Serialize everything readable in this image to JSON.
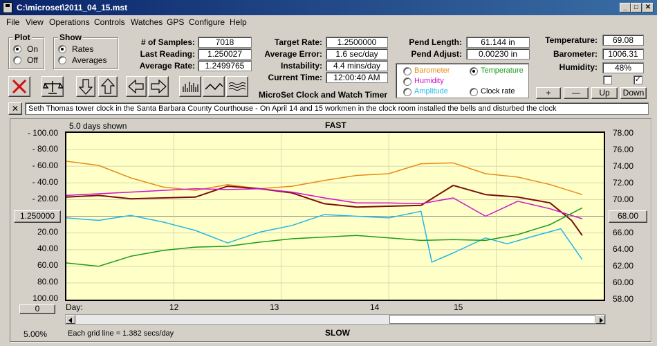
{
  "window": {
    "title": "C:\\microset\\2011_04_15.mst"
  },
  "menu": [
    "File",
    "View",
    "Operations",
    "Controls",
    "Watches",
    "GPS",
    "Configure",
    "Help"
  ],
  "plot_group": {
    "title": "Plot",
    "on": "On",
    "off": "Off",
    "selected": "On"
  },
  "show_group": {
    "title": "Show",
    "rates": "Rates",
    "averages": "Averages",
    "selected": "Rates"
  },
  "stats": {
    "samples_label": "# of Samples:",
    "samples": "7018",
    "last_reading_label": "Last Reading:",
    "last_reading": "1.250027",
    "average_rate_label": "Average Rate:",
    "average_rate": "1.2499765"
  },
  "rates": {
    "target_rate_label": "Target Rate:",
    "target_rate": "1.2500000",
    "average_error_label": "Average Error:",
    "average_error": "1.6 sec/day",
    "instability_label": "Instability:",
    "instability": "4.4 mins/day",
    "current_time_label": "Current Time:",
    "current_time": "12:00:40 AM",
    "program_name": "MicroSet Clock and Watch Timer"
  },
  "pendulum": {
    "length_label": "Pend Length:",
    "length": "61.144 in",
    "adjust_label": "Pend Adjust:",
    "adjust": "0.00230 in"
  },
  "sensor_options": {
    "barometer": "Barometer",
    "temperature": "Temperature",
    "humidity": "Humidity",
    "amplitude": "Amplitude",
    "clock_rate": "Clock rate",
    "selected": "Temperature",
    "colors": {
      "barometer": "#e88a14",
      "temperature": "#1a9a1a",
      "humidity": "#d010d0",
      "amplitude": "#20b8e8"
    }
  },
  "environment": {
    "temperature_label": "Temperature:",
    "temperature": "69.08",
    "barometer_label": "Barometer:",
    "barometer": "1006.31",
    "humidity_label": "Humidity:",
    "humidity": "48%"
  },
  "scale_buttons": {
    "plus": "+",
    "minus": "—",
    "up": "Up",
    "down": "Down"
  },
  "note": "Seth Thomas tower clock in the Santa Barbara County Courthouse - On  April 14 and 15 workmen in the clock room installed the bells and disturbed the clock",
  "chart_labels": {
    "days_shown": "5.0 days shown",
    "fast": "FAST",
    "slow": "SLOW",
    "center_value": "1.250000",
    "right_center_value": "68.00",
    "bottom_left_button": "0",
    "zoom": "5.00%",
    "grid_note": "Each grid line = 1.382 secs/day"
  },
  "chart_data": {
    "type": "line",
    "x_label": "Day:",
    "x_ticks": [
      "12",
      "13",
      "14",
      "15"
    ],
    "left_axis_ticks": [
      "- 100.00",
      "- 80.00",
      "- 60.00",
      "- 40.00",
      "- 20.00",
      "20.00",
      "40.00",
      "60.00",
      "80.00",
      "100.00"
    ],
    "right_axis_ticks": [
      "78.00",
      "76.00",
      "74.00",
      "72.00",
      "70.00",
      "66.00",
      "64.00",
      "62.00",
      "60.00",
      "58.00"
    ],
    "ylim_right": [
      58,
      78
    ],
    "xlim_days": [
      11,
      16
    ],
    "series": [
      {
        "key": "barometer",
        "color": "#e88a14",
        "x": [
          11.0,
          11.3,
          11.6,
          11.9,
          12.2,
          12.5,
          12.8,
          13.1,
          13.4,
          13.7,
          14.0,
          14.3,
          14.6,
          14.9,
          15.2,
          15.5,
          15.8
        ],
        "y": [
          74.6,
          74.1,
          72.6,
          71.5,
          71.1,
          71.8,
          71.3,
          71.6,
          72.3,
          72.9,
          73.1,
          74.3,
          74.4,
          73.1,
          72.7,
          71.8,
          70.6
        ]
      },
      {
        "key": "temperature",
        "color": "#7a0e0e",
        "x": [
          11.0,
          11.3,
          11.6,
          11.9,
          12.2,
          12.5,
          12.8,
          13.1,
          13.4,
          13.7,
          14.0,
          14.3,
          14.6,
          14.9,
          15.2,
          15.5,
          15.7,
          15.8
        ],
        "y": [
          70.3,
          70.5,
          70.1,
          70.2,
          70.3,
          71.6,
          71.3,
          70.8,
          69.5,
          69.1,
          69.2,
          69.3,
          71.7,
          70.6,
          70.3,
          69.6,
          67.5,
          65.7
        ]
      },
      {
        "key": "humidity",
        "color": "#d010d0",
        "x": [
          11.0,
          11.3,
          11.6,
          11.9,
          12.2,
          12.5,
          12.8,
          13.1,
          13.4,
          13.7,
          14.0,
          14.3,
          14.6,
          14.9,
          15.2,
          15.5,
          15.8
        ],
        "y": [
          70.5,
          70.7,
          70.9,
          71.1,
          71.3,
          71.2,
          71.3,
          70.9,
          70.2,
          69.6,
          69.6,
          69.5,
          70.2,
          68.0,
          69.8,
          68.9,
          67.7
        ]
      },
      {
        "key": "amplitude",
        "color": "#20b8e8",
        "x": [
          11.0,
          11.3,
          11.6,
          11.9,
          12.2,
          12.5,
          12.8,
          13.1,
          13.4,
          13.7,
          14.0,
          14.3,
          14.4,
          14.6,
          14.9,
          15.1,
          15.4,
          15.6,
          15.8
        ],
        "y": [
          67.8,
          67.5,
          68.1,
          67.3,
          66.3,
          64.8,
          66.1,
          66.9,
          68.2,
          68.0,
          67.8,
          68.6,
          62.5,
          63.6,
          65.4,
          64.7,
          65.8,
          66.5,
          62.8
        ]
      },
      {
        "key": "clock_rate",
        "color": "#1a9a1a",
        "x": [
          11.0,
          11.3,
          11.6,
          11.9,
          12.2,
          12.5,
          12.8,
          13.1,
          13.4,
          13.7,
          14.0,
          14.3,
          14.6,
          14.9,
          15.2,
          15.5,
          15.8
        ],
        "y": [
          62.4,
          62.0,
          63.2,
          63.9,
          64.3,
          64.4,
          64.9,
          65.3,
          65.5,
          65.7,
          65.4,
          65.1,
          65.2,
          65.1,
          65.8,
          67.0,
          69.0
        ]
      }
    ]
  }
}
